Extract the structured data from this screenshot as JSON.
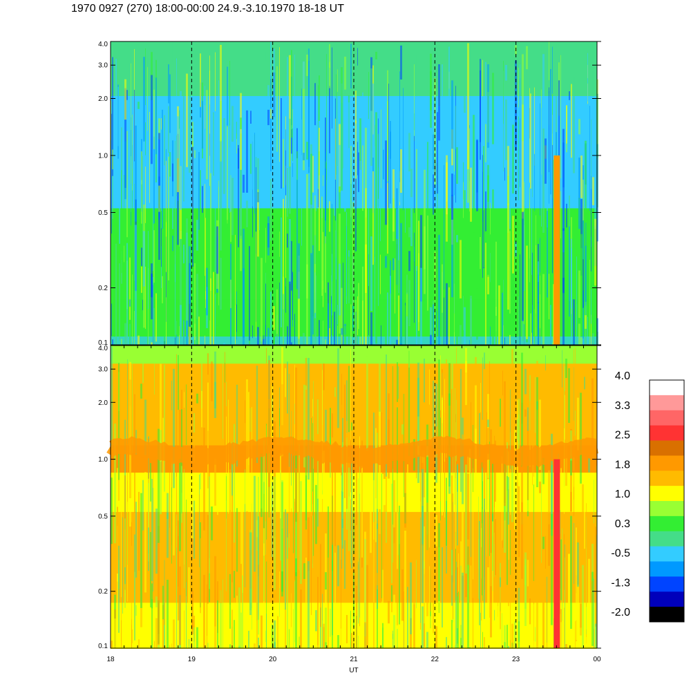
{
  "title": "1970 0927 (270) 18:00-00:00 24.9.-3.10.1970  18-18 UT",
  "chart_data": [
    {
      "type": "heatmap",
      "panel": "upper",
      "x": {
        "label": "UT",
        "ticks": [
          "18",
          "19",
          "20",
          "21",
          "22",
          "23",
          "00"
        ],
        "range_hours": [
          18,
          24
        ]
      },
      "y": {
        "scale": "log",
        "range": [
          0.1,
          4.0
        ],
        "ticks": [
          "0.1",
          "0.2",
          "0.5",
          "1.0",
          "2.0",
          "3.0",
          "4.0"
        ]
      },
      "dominant_levels": [
        -1.3,
        -0.5,
        0.3,
        1.0
      ],
      "features": [
        {
          "ut": 23.5,
          "y_range": [
            0.1,
            1.0
          ],
          "level": 1.8
        }
      ],
      "time_markers_ut": [
        19,
        20,
        21,
        22,
        23
      ]
    },
    {
      "type": "heatmap",
      "panel": "lower",
      "x": {
        "label": "UT",
        "ticks": [
          "18",
          "19",
          "20",
          "21",
          "22",
          "23",
          "00"
        ],
        "range_hours": [
          18,
          24
        ]
      },
      "y": {
        "scale": "log",
        "range": [
          0.1,
          4.0
        ],
        "ticks": [
          "0.1",
          "0.2",
          "0.5",
          "1.0",
          "2.0",
          "3.0",
          "4.0"
        ]
      },
      "dominant_levels": [
        0.3,
        1.0,
        1.8
      ],
      "features": [
        {
          "y_approx": 1.1,
          "level": 1.8
        },
        {
          "ut": 23.5,
          "y_range": [
            0.1,
            1.0
          ],
          "level": 2.5
        }
      ],
      "time_markers_ut": [
        19,
        20,
        21,
        22,
        23
      ]
    }
  ],
  "colorbar": {
    "labels": [
      "4.0",
      "3.3",
      "2.5",
      "1.8",
      "1.0",
      "0.3",
      "-0.5",
      "-1.3",
      "-2.0"
    ],
    "colors": [
      "#ffffff",
      "#ff9999",
      "#ff6666",
      "#ff3333",
      "#d97000",
      "#ff9900",
      "#ffbb00",
      "#ffff00",
      "#99ff33",
      "#33ee33",
      "#44dd88",
      "#33ccff",
      "#0099ff",
      "#0044ff",
      "#0000bb",
      "#000000"
    ]
  }
}
